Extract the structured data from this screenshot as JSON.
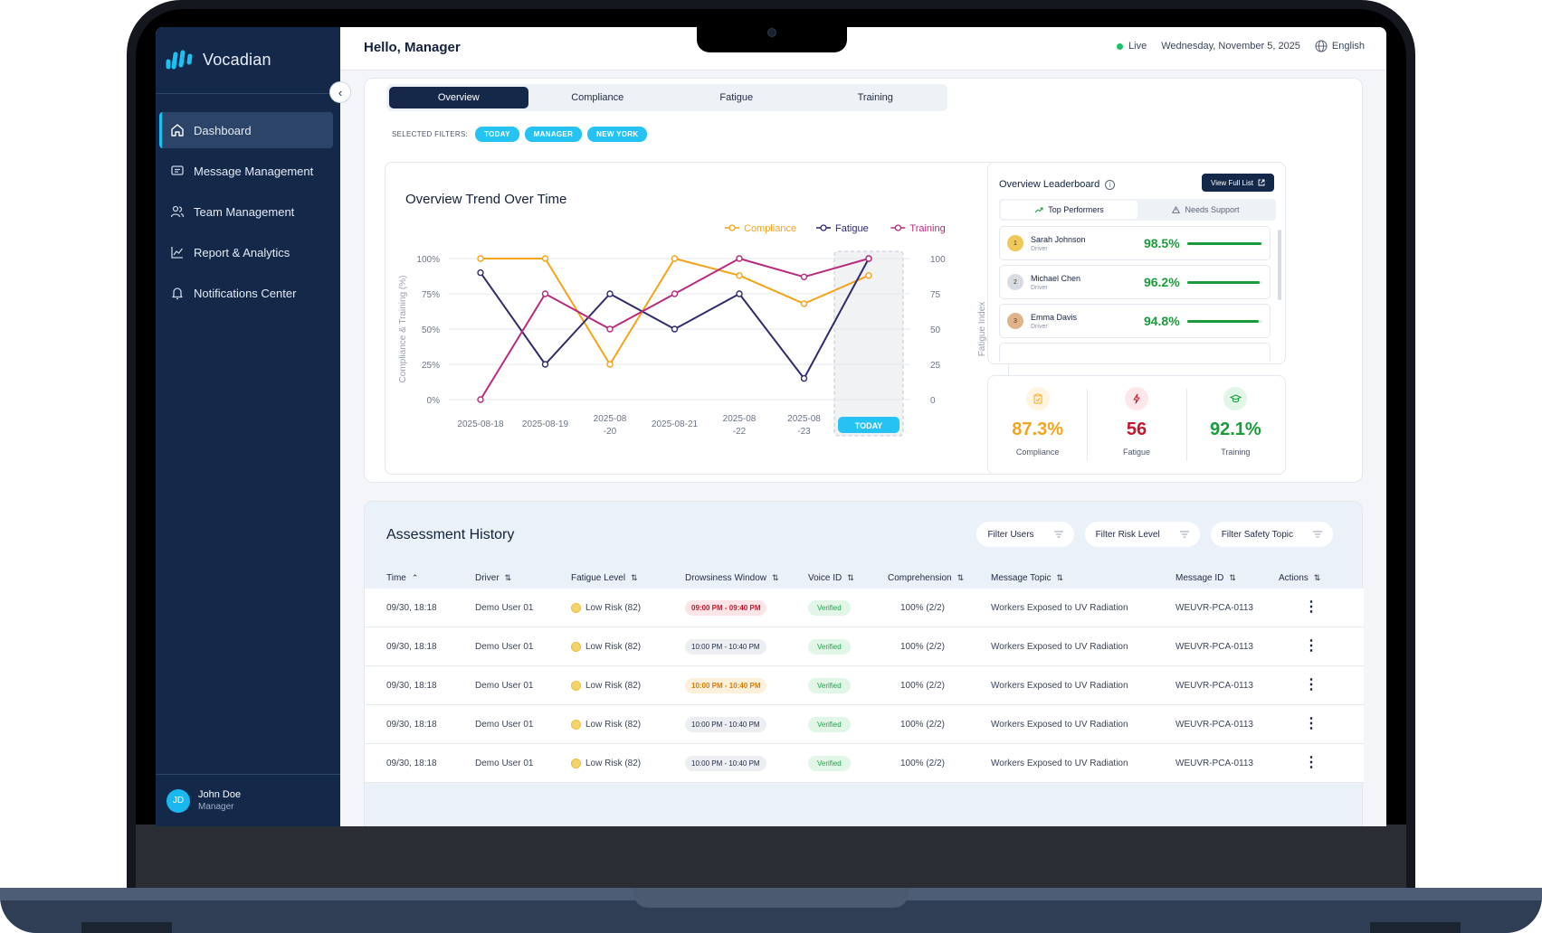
{
  "app": {
    "brand": "Vocadian"
  },
  "sidebar": {
    "items": [
      {
        "label": "Dashboard"
      },
      {
        "label": "Message Management"
      },
      {
        "label": "Team Management"
      },
      {
        "label": "Report & Analytics"
      },
      {
        "label": "Notifications Center"
      }
    ],
    "user": {
      "initials": "JD",
      "name": "John Doe",
      "role": "Manager"
    }
  },
  "header": {
    "greeting": "Hello, Manager",
    "status": "Live",
    "date": "Wednesday, November 5, 2025",
    "language": "English"
  },
  "tabs": [
    "Overview",
    "Compliance",
    "Fatigue",
    "Training"
  ],
  "filters": {
    "label": "SELECTED FILTERS:",
    "chips": [
      "TODAY",
      "MANAGER",
      "NEW YORK"
    ]
  },
  "trend": {
    "title": "Overview Trend Over Time",
    "today_label": "TODAY"
  },
  "chart_data": {
    "type": "line",
    "title": "Overview Trend Over Time",
    "ylabel": "Compliance & Training (%)",
    "y2label": "Fatigue Index",
    "categories": [
      "2025-08-18",
      "2025-08-19",
      "2025-08-20",
      "2025-08-21",
      "2025-08-22",
      "2025-08-23",
      "TODAY"
    ],
    "category_labels": [
      [
        "2025-08-18"
      ],
      [
        "2025-08-19"
      ],
      [
        "2025-08",
        "-20"
      ],
      [
        "2025-08-21"
      ],
      [
        "2025-08",
        "-22"
      ],
      [
        "2025-08",
        "-23"
      ],
      []
    ],
    "yticks": [
      "0%",
      "25%",
      "50%",
      "75%",
      "100%"
    ],
    "y2ticks": [
      "0",
      "25",
      "50",
      "75",
      "100"
    ],
    "ylim": [
      0,
      100
    ],
    "y2lim": [
      0,
      100
    ],
    "legend_position": "top-right",
    "grid": true,
    "series": [
      {
        "name": "Compliance",
        "color": "#f5a31a",
        "values": [
          100,
          100,
          25,
          100,
          88,
          68,
          88
        ]
      },
      {
        "name": "Fatigue",
        "color": "#2f2b6e",
        "values": [
          90,
          25,
          75,
          50,
          75,
          15,
          100
        ]
      },
      {
        "name": "Training",
        "color": "#b82a7e",
        "values": [
          0,
          75,
          50,
          75,
          100,
          87,
          100
        ]
      }
    ]
  },
  "leaderboard": {
    "title": "Overview Leaderboard",
    "view_full": "View Full List",
    "tabs": [
      "Top Performers",
      "Needs Support"
    ],
    "rows": [
      {
        "rank": "1",
        "name": "Sarah Johnson",
        "role": "Driver",
        "score": "98.5%",
        "pct": 98.5,
        "color": "#f0c75a"
      },
      {
        "rank": "2",
        "name": "Michael Chen",
        "role": "Driver",
        "score": "96.2%",
        "pct": 96.2,
        "color": "#d7dbe2"
      },
      {
        "rank": "3",
        "name": "Emma Davis",
        "role": "Driver",
        "score": "94.8%",
        "pct": 94.8,
        "color": "#e0b48a"
      }
    ]
  },
  "stats": [
    {
      "value": "87.3%",
      "label": "Compliance",
      "color": "#f5a31a"
    },
    {
      "value": "56",
      "label": "Fatigue",
      "color": "#c2182f"
    },
    {
      "value": "92.1%",
      "label": "Training",
      "color": "#1a9b3c"
    }
  ],
  "assessment": {
    "title": "Assessment History",
    "filters": [
      "Filter Users",
      "Filter Risk Level",
      "Filter Safety Topic"
    ],
    "columns": [
      "Time",
      "Driver",
      "Fatigue Level",
      "Drowsiness Window",
      "Voice ID",
      "Comprehension",
      "Message Topic",
      "Message ID",
      "Actions"
    ],
    "rows": [
      {
        "time": "09/30, 18:18",
        "driver": "Demo User 01",
        "fatigue": "Low Risk (82)",
        "window": "09:00 PM - 09:40 PM",
        "voice": "Verified",
        "comp": "100% (2/2)",
        "topic": "Workers Exposed to UV Radiation",
        "id": "WEUVR-PCA-0113"
      },
      {
        "time": "09/30, 18:18",
        "driver": "Demo User 01",
        "fatigue": "Low Risk (82)",
        "window": "10:00 PM - 10:40 PM",
        "voice": "Verified",
        "comp": "100% (2/2)",
        "topic": "Workers Exposed to UV Radiation",
        "id": "WEUVR-PCA-0113"
      },
      {
        "time": "09/30, 18:18",
        "driver": "Demo User 01",
        "fatigue": "Low Risk (82)",
        "window": "10:00 PM - 10:40 PM",
        "voice": "Verified",
        "comp": "100% (2/2)",
        "topic": "Workers Exposed to UV Radiation",
        "id": "WEUVR-PCA-0113"
      },
      {
        "time": "09/30, 18:18",
        "driver": "Demo User 01",
        "fatigue": "Low Risk (82)",
        "window": "10:00 PM - 10:40 PM",
        "voice": "Verified",
        "comp": "100% (2/2)",
        "topic": "Workers Exposed to UV Radiation",
        "id": "WEUVR-PCA-0113"
      },
      {
        "time": "09/30, 18:18",
        "driver": "Demo User 01",
        "fatigue": "Low Risk (82)",
        "window": "10:00 PM - 10:40 PM",
        "voice": "Verified",
        "comp": "100% (2/2)",
        "topic": "Workers Exposed to UV Radiation",
        "id": "WEUVR-PCA-0113"
      }
    ]
  }
}
